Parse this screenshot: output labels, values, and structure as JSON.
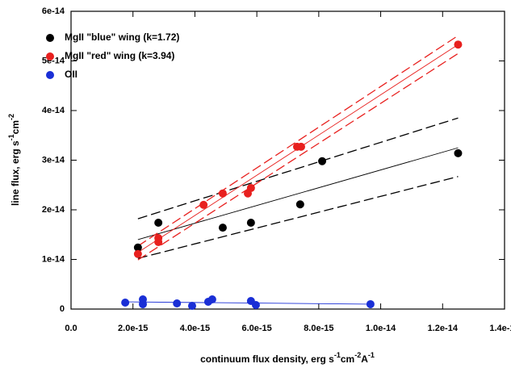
{
  "chart_data": {
    "type": "scatter",
    "xlabel": [
      "continuum flux density, erg s",
      "-1",
      "cm",
      "-2",
      "A",
      "-1"
    ],
    "ylabel": [
      "line flux, erg s",
      "-1",
      "cm",
      "-2"
    ],
    "xlim": [
      0,
      1.4e-14
    ],
    "xticks": [
      {
        "value": 0,
        "label": "0.0"
      },
      {
        "value": 2e-15,
        "label": "2.0e-15"
      },
      {
        "value": 4e-15,
        "label": "4.0e-15"
      },
      {
        "value": 6e-15,
        "label": "6.0e-15"
      },
      {
        "value": 8e-15,
        "label": "8.0e-15"
      },
      {
        "value": 1e-14,
        "label": "1.0e-14"
      },
      {
        "value": 1.2e-14,
        "label": "1.2e-14"
      },
      {
        "value": 1.4e-14,
        "label": "1.4e-14"
      }
    ],
    "ylim": [
      0,
      6e-14
    ],
    "yticks": [
      0,
      {
        "value": 1e-14,
        "label": "1e-14"
      },
      {
        "value": 2e-14,
        "label": "2e-14"
      },
      {
        "value": 3e-14,
        "label": "3e-14"
      },
      {
        "value": 4e-14,
        "label": "4e-14"
      },
      {
        "value": 5e-14,
        "label": "5e-14"
      },
      {
        "value": 6e-14,
        "label": "6e-14"
      }
    ],
    "legend": "upper left",
    "series": [
      {
        "name": "MgII \"blue\" wing (k=1.72)",
        "color": "#000000",
        "x": [
          2.16e-15,
          2.82e-15,
          4.9e-15,
          5.81e-15,
          7.4e-15,
          8.11e-15,
          1.25e-14
        ],
        "values": [
          1.24e-14,
          1.74e-14,
          1.64e-14,
          1.74e-14,
          2.11e-14,
          2.98e-14,
          3.14e-14
        ]
      },
      {
        "name": "MgII \"red\" wing (k=3.94)",
        "color": "#e8201e",
        "x": [
          2.16e-15,
          2.82e-15,
          2.82e-15,
          4.28e-15,
          4.9e-15,
          5.71e-15,
          5.81e-15,
          7.3e-15,
          7.43e-15,
          1.25e-14
        ],
        "values": [
          1.11e-14,
          1.35e-14,
          1.43e-14,
          2.1e-14,
          2.33e-14,
          2.33e-14,
          2.44e-14,
          3.27e-14,
          3.27e-14,
          5.33e-14
        ]
      },
      {
        "name": "OII",
        "color": "#1a2fd6",
        "x": [
          1.75e-15,
          2.32e-15,
          2.32e-15,
          3.42e-15,
          3.91e-15,
          4.43e-15,
          4.56e-15,
          5.81e-15,
          5.97e-15,
          9.67e-15
        ],
        "values": [
          1.3e-15,
          1.95e-15,
          9.8e-16,
          1.14e-15,
          6.5e-16,
          1.46e-15,
          1.95e-15,
          1.63e-15,
          8.1e-16,
          9.8e-16
        ]
      }
    ],
    "fits": [
      {
        "color": "#000000",
        "dash": false,
        "x": [
          2.16e-15,
          1.25e-14
        ],
        "values": [
          1.4e-14,
          3.25e-14
        ]
      },
      {
        "color": "#000000",
        "dash": true,
        "x": [
          2.16e-15,
          1.25e-14
        ],
        "values": [
          1.82e-14,
          3.85e-14
        ]
      },
      {
        "color": "#000000",
        "dash": true,
        "x": [
          2.16e-15,
          1.25e-14
        ],
        "values": [
          1.02e-14,
          2.67e-14
        ]
      },
      {
        "color": "#e8201e",
        "dash": false,
        "x": [
          2.16e-15,
          1.25e-14
        ],
        "values": [
          1.14e-14,
          5.33e-14
        ]
      },
      {
        "color": "#e8201e",
        "dash": true,
        "x": [
          2.16e-15,
          1.25e-14
        ],
        "values": [
          1.27e-14,
          5.51e-14
        ]
      },
      {
        "color": "#e8201e",
        "dash": true,
        "x": [
          2.16e-15,
          1.25e-14
        ],
        "values": [
          9.9e-15,
          5.15e-14
        ]
      },
      {
        "color": "#1a2fd6",
        "dash": false,
        "x": [
          1.75e-15,
          9.67e-15
        ],
        "values": [
          1.46e-15,
          9.8e-16
        ]
      }
    ]
  }
}
